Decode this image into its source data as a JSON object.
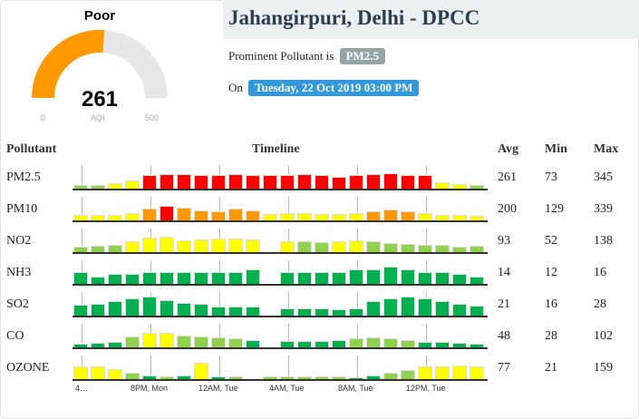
{
  "gauge": {
    "category": "Poor",
    "value": "261",
    "label": "AQI",
    "min": "0",
    "max": "500",
    "fraction": 0.522,
    "fill_color": "#ff9900",
    "track_color": "#e8e6e8"
  },
  "header": {
    "title": "Jahangirpuri, Delhi - DPCC",
    "prominent_prefix": "Prominent Pollutant is",
    "prominent": "PM2.5",
    "on_prefix": "On",
    "datetime": "Tuesday, 22 Oct 2019 03:00 PM",
    "badge_gray": "#95a5a6",
    "badge_blue": "#3498db"
  },
  "table": {
    "headers": {
      "pollutant": "Pollutant",
      "timeline": "Timeline",
      "avg": "Avg",
      "min": "Min",
      "max": "Max"
    },
    "color_key": {
      "G": "#00b050",
      "g": "#92d050",
      "Y": "#ffff00",
      "O": "#ff9900",
      "R": "#ff0000"
    },
    "rows": [
      {
        "name": "PM2.5",
        "avg": "261",
        "min": "73",
        "max": "345",
        "bars": [
          [
            3,
            "g"
          ],
          [
            3,
            "g"
          ],
          [
            5,
            "Y"
          ],
          [
            8,
            "Y"
          ],
          [
            14,
            "R"
          ],
          [
            15,
            "R"
          ],
          [
            15,
            "R"
          ],
          [
            14,
            "R"
          ],
          [
            14,
            "R"
          ],
          [
            15,
            "R"
          ],
          [
            14,
            "R"
          ],
          [
            14,
            "R"
          ],
          [
            14,
            "R"
          ],
          [
            15,
            "R"
          ],
          [
            14,
            "R"
          ],
          [
            12,
            "R"
          ],
          [
            14,
            "R"
          ],
          [
            15,
            "R"
          ],
          [
            16,
            "R"
          ],
          [
            14,
            "R"
          ],
          [
            14,
            "R"
          ],
          [
            6,
            "Y"
          ],
          [
            4,
            "Y"
          ],
          [
            3,
            "g"
          ]
        ]
      },
      {
        "name": "PM10",
        "avg": "200",
        "min": "129",
        "max": "339",
        "bars": [
          [
            5,
            "Y"
          ],
          [
            5,
            "Y"
          ],
          [
            5,
            "Y"
          ],
          [
            7,
            "Y"
          ],
          [
            12,
            "O"
          ],
          [
            15,
            "R"
          ],
          [
            13,
            "O"
          ],
          [
            10,
            "O"
          ],
          [
            9,
            "O"
          ],
          [
            12,
            "O"
          ],
          [
            10,
            "O"
          ],
          [
            6,
            "Y"
          ],
          [
            7,
            "Y"
          ],
          [
            7,
            "Y"
          ],
          [
            6,
            "Y"
          ],
          [
            6,
            "Y"
          ],
          [
            7,
            "Y"
          ],
          [
            9,
            "O"
          ],
          [
            11,
            "O"
          ],
          [
            9,
            "O"
          ],
          [
            7,
            "Y"
          ],
          [
            5,
            "Y"
          ],
          [
            5,
            "Y"
          ],
          [
            4,
            "Y"
          ]
        ]
      },
      {
        "name": "NO2",
        "avg": "93",
        "min": "52",
        "max": "138",
        "bars": [
          [
            5,
            "g"
          ],
          [
            6,
            "g"
          ],
          [
            7,
            "g"
          ],
          [
            11,
            "Y"
          ],
          [
            15,
            "Y"
          ],
          [
            16,
            "Y"
          ],
          [
            12,
            "Y"
          ],
          [
            13,
            "Y"
          ],
          [
            14,
            "Y"
          ],
          [
            14,
            "Y"
          ],
          [
            13,
            "Y"
          ],
          null,
          [
            11,
            "Y"
          ],
          [
            11,
            "g"
          ],
          [
            10,
            "g"
          ],
          [
            11,
            "Y"
          ],
          [
            12,
            "Y"
          ],
          [
            11,
            "g"
          ],
          [
            9,
            "g"
          ],
          [
            8,
            "g"
          ],
          [
            7,
            "g"
          ],
          [
            7,
            "g"
          ],
          [
            5,
            "g"
          ],
          [
            6,
            "g"
          ]
        ]
      },
      {
        "name": "NH3",
        "avg": "14",
        "min": "12",
        "max": "16",
        "bars": [
          [
            12,
            "G"
          ],
          [
            7,
            "G"
          ],
          [
            10,
            "G"
          ],
          [
            10,
            "G"
          ],
          [
            12,
            "G"
          ],
          [
            12,
            "G"
          ],
          [
            12,
            "G"
          ],
          [
            12,
            "G"
          ],
          [
            12,
            "G"
          ],
          [
            12,
            "G"
          ],
          [
            15,
            "G"
          ],
          null,
          [
            12,
            "G"
          ],
          [
            12,
            "G"
          ],
          [
            12,
            "G"
          ],
          [
            12,
            "G"
          ],
          [
            15,
            "G"
          ],
          [
            15,
            "G"
          ],
          [
            18,
            "G"
          ],
          [
            15,
            "G"
          ],
          [
            12,
            "G"
          ],
          [
            12,
            "G"
          ],
          [
            10,
            "G"
          ],
          [
            7,
            "G"
          ]
        ]
      },
      {
        "name": "SO2",
        "avg": "21",
        "min": "16",
        "max": "28",
        "bars": [
          [
            11,
            "G"
          ],
          [
            12,
            "G"
          ],
          [
            15,
            "G"
          ],
          [
            18,
            "G"
          ],
          [
            20,
            "G"
          ],
          [
            16,
            "G"
          ],
          [
            13,
            "G"
          ],
          [
            12,
            "G"
          ],
          [
            9,
            "G"
          ],
          [
            9,
            "G"
          ],
          [
            9,
            "G"
          ],
          null,
          [
            7,
            "G"
          ],
          [
            7,
            "G"
          ],
          [
            7,
            "G"
          ],
          [
            6,
            "G"
          ],
          [
            7,
            "G"
          ],
          [
            15,
            "G"
          ],
          [
            18,
            "G"
          ],
          [
            20,
            "G"
          ],
          [
            18,
            "G"
          ],
          [
            15,
            "G"
          ],
          [
            12,
            "G"
          ],
          [
            10,
            "G"
          ]
        ]
      },
      {
        "name": "CO",
        "avg": "48",
        "min": "28",
        "max": "102",
        "bars": [
          [
            3,
            "G"
          ],
          [
            4,
            "G"
          ],
          [
            5,
            "G"
          ],
          [
            11,
            "g"
          ],
          [
            15,
            "Y"
          ],
          [
            15,
            "Y"
          ],
          [
            12,
            "g"
          ],
          [
            11,
            "g"
          ],
          [
            10,
            "g"
          ],
          [
            9,
            "g"
          ],
          [
            7,
            "G"
          ],
          null,
          [
            6,
            "G"
          ],
          [
            6,
            "G"
          ],
          [
            6,
            "G"
          ],
          [
            7,
            "G"
          ],
          [
            9,
            "g"
          ],
          [
            10,
            "g"
          ],
          [
            9,
            "g"
          ],
          [
            7,
            "g"
          ],
          [
            5,
            "G"
          ],
          [
            5,
            "G"
          ],
          [
            4,
            "G"
          ],
          [
            3,
            "G"
          ]
        ]
      },
      {
        "name": "OZONE",
        "avg": "77",
        "min": "21",
        "max": "159",
        "bars": [
          [
            13,
            "Y"
          ],
          [
            13,
            "Y"
          ],
          [
            10,
            "Y"
          ],
          [
            6,
            "g"
          ],
          [
            3,
            "G"
          ],
          [
            2,
            "g"
          ],
          [
            3,
            "G"
          ],
          [
            17,
            "Y"
          ],
          [
            2,
            "G"
          ],
          [
            2,
            "g"
          ],
          null,
          [
            2,
            "g"
          ],
          [
            2,
            "g"
          ],
          [
            2,
            "g"
          ],
          [
            2,
            "g"
          ],
          [
            2,
            "g"
          ],
          [
            1,
            "G"
          ],
          [
            3,
            "G"
          ],
          [
            6,
            "g"
          ],
          [
            9,
            "g"
          ],
          [
            13,
            "Y"
          ],
          [
            13,
            "Y"
          ],
          [
            14,
            "Y"
          ],
          [
            13,
            "Y"
          ]
        ]
      }
    ],
    "x_ticks": [
      "4…",
      "8PM, Mon",
      "12AM, Tue",
      "4AM, Tue",
      "8AM, Tue",
      "12PM, Tue"
    ]
  }
}
